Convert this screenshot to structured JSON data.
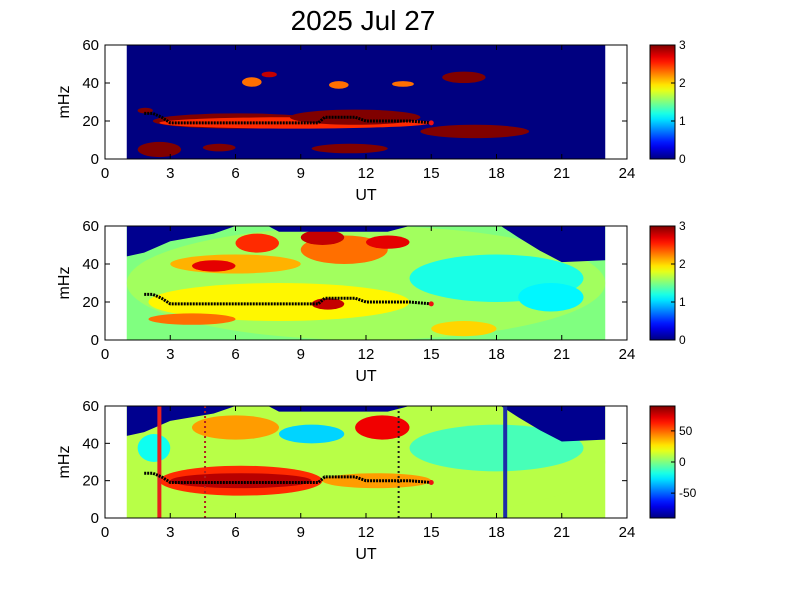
{
  "figure": {
    "title": "2025 Jul 27"
  },
  "chart_data": [
    {
      "type": "heatmap",
      "panel": "top",
      "xlabel": "UT",
      "ylabel": "mHz",
      "xlim": [
        0,
        24
      ],
      "ylim": [
        0,
        60
      ],
      "xticks": [
        0,
        3,
        6,
        9,
        12,
        15,
        18,
        21,
        24
      ],
      "yticks": [
        0,
        20,
        40,
        60
      ],
      "data_extent_ut": [
        1,
        23
      ],
      "colorbar": {
        "range": [
          0,
          3
        ],
        "ticks": [
          0,
          1,
          2,
          3
        ]
      },
      "background_value": 0,
      "blobs": [
        {
          "ut": [
            1.5,
            2.2
          ],
          "mhz": [
            24,
            27
          ],
          "v": 3
        },
        {
          "ut": [
            2.2,
            10
          ],
          "mhz": [
            16,
            24
          ],
          "v": 3
        },
        {
          "ut": [
            2.5,
            15
          ],
          "mhz": [
            16,
            22
          ],
          "v": 2.5
        },
        {
          "ut": [
            8.5,
            14.5
          ],
          "mhz": [
            18,
            26
          ],
          "v": 3
        },
        {
          "ut": [
            14.5,
            19.5
          ],
          "mhz": [
            11,
            18
          ],
          "v": 3
        },
        {
          "ut": [
            15.5,
            17.5
          ],
          "mhz": [
            40,
            46
          ],
          "v": 3
        },
        {
          "ut": [
            1.5,
            3.5
          ],
          "mhz": [
            1,
            9
          ],
          "v": 3
        },
        {
          "ut": [
            4.5,
            6
          ],
          "mhz": [
            4,
            8
          ],
          "v": 3
        },
        {
          "ut": [
            9.5,
            13
          ],
          "mhz": [
            3,
            8
          ],
          "v": 3
        },
        {
          "ut": [
            6.3,
            7.2
          ],
          "mhz": [
            38,
            43
          ],
          "v": 2.3
        },
        {
          "ut": [
            7.2,
            7.9
          ],
          "mhz": [
            43,
            46
          ],
          "v": 2.8
        },
        {
          "ut": [
            10.3,
            11.2
          ],
          "mhz": [
            37,
            41
          ],
          "v": 2.3
        },
        {
          "ut": [
            13.2,
            14.2
          ],
          "mhz": [
            38,
            41
          ],
          "v": 2.3
        }
      ],
      "trace": [
        [
          1.8,
          24
        ],
        [
          2.2,
          24
        ],
        [
          2.6,
          22
        ],
        [
          3,
          19
        ],
        [
          6,
          19
        ],
        [
          9,
          19
        ],
        [
          9.8,
          19
        ],
        [
          10.1,
          22
        ],
        [
          11.5,
          22
        ],
        [
          12,
          20
        ],
        [
          14,
          20
        ],
        [
          15,
          19
        ]
      ]
    },
    {
      "type": "heatmap",
      "panel": "middle",
      "xlabel": "UT",
      "ylabel": "mHz",
      "xlim": [
        0,
        24
      ],
      "ylim": [
        0,
        60
      ],
      "xticks": [
        0,
        3,
        6,
        9,
        12,
        15,
        18,
        21,
        24
      ],
      "yticks": [
        0,
        20,
        40,
        60
      ],
      "data_extent_ut": [
        1,
        23
      ],
      "colorbar": {
        "range": [
          0,
          3
        ],
        "ticks": [
          0,
          1,
          2,
          3
        ]
      },
      "background_value": 1.5,
      "blobs": [
        {
          "ut": [
            1,
            23
          ],
          "mhz": [
            0,
            60
          ],
          "v": 1.6
        },
        {
          "ut": [
            2,
            14
          ],
          "mhz": [
            10,
            30
          ],
          "v": 1.9
        },
        {
          "ut": [
            3,
            9
          ],
          "mhz": [
            35,
            45
          ],
          "v": 2.1
        },
        {
          "ut": [
            9,
            13
          ],
          "mhz": [
            40,
            55
          ],
          "v": 2.3
        },
        {
          "ut": [
            6,
            8
          ],
          "mhz": [
            46,
            56
          ],
          "v": 2.5
        },
        {
          "ut": [
            4,
            6
          ],
          "mhz": [
            36,
            42
          ],
          "v": 2.7
        },
        {
          "ut": [
            9,
            11
          ],
          "mhz": [
            50,
            58
          ],
          "v": 2.8
        },
        {
          "ut": [
            12,
            14
          ],
          "mhz": [
            48,
            55
          ],
          "v": 2.7
        },
        {
          "ut": [
            9.5,
            11
          ],
          "mhz": [
            16,
            22
          ],
          "v": 2.8
        },
        {
          "ut": [
            14,
            22
          ],
          "mhz": [
            20,
            45
          ],
          "v": 1.2
        },
        {
          "ut": [
            19,
            22
          ],
          "mhz": [
            15,
            30
          ],
          "v": 1.1
        },
        {
          "ut": [
            2,
            6
          ],
          "mhz": [
            8,
            14
          ],
          "v": 2.3
        },
        {
          "ut": [
            15,
            18
          ],
          "mhz": [
            2,
            10
          ],
          "v": 2.0
        }
      ],
      "trace": [
        [
          1.8,
          24
        ],
        [
          2.2,
          24
        ],
        [
          2.6,
          22
        ],
        [
          3,
          19
        ],
        [
          6,
          19
        ],
        [
          9,
          19
        ],
        [
          9.8,
          19
        ],
        [
          10.1,
          22
        ],
        [
          11.5,
          22
        ],
        [
          12,
          20
        ],
        [
          14,
          20
        ],
        [
          15,
          19
        ]
      ]
    },
    {
      "type": "heatmap",
      "panel": "bottom",
      "xlabel": "UT",
      "ylabel": "mHz",
      "xlim": [
        0,
        24
      ],
      "ylim": [
        0,
        60
      ],
      "xticks": [
        0,
        3,
        6,
        9,
        12,
        15,
        18,
        21,
        24
      ],
      "yticks": [
        0,
        20,
        40,
        60
      ],
      "data_extent_ut": [
        1,
        23
      ],
      "colorbar": {
        "range": [
          -90,
          90
        ],
        "ticks": [
          -50,
          0,
          50
        ]
      },
      "background_value": 10,
      "blobs": [
        {
          "ut": [
            1,
            23
          ],
          "mhz": [
            0,
            60
          ],
          "v": 10
        },
        {
          "ut": [
            2.5,
            10
          ],
          "mhz": [
            12,
            28
          ],
          "v": 60
        },
        {
          "ut": [
            3,
            9.5
          ],
          "mhz": [
            16,
            24
          ],
          "v": 80
        },
        {
          "ut": [
            10,
            15
          ],
          "mhz": [
            16,
            24
          ],
          "v": 40
        },
        {
          "ut": [
            11.5,
            14
          ],
          "mhz": [
            42,
            55
          ],
          "v": 70
        },
        {
          "ut": [
            4,
            8
          ],
          "mhz": [
            42,
            55
          ],
          "v": 40
        },
        {
          "ut": [
            8,
            11
          ],
          "mhz": [
            40,
            50
          ],
          "v": -30
        },
        {
          "ut": [
            14,
            22
          ],
          "mhz": [
            25,
            50
          ],
          "v": -10
        },
        {
          "ut": [
            1.5,
            3
          ],
          "mhz": [
            30,
            45
          ],
          "v": -20
        }
      ],
      "vlines": [
        {
          "ut": 2.5,
          "color": "#e8201e",
          "style": "solid"
        },
        {
          "ut": 4.6,
          "color": "#b0201e",
          "style": "dotted"
        },
        {
          "ut": 13.5,
          "color": "#1b1b1b",
          "style": "dotted"
        },
        {
          "ut": 18.4,
          "color": "#1e2da8",
          "style": "solid"
        }
      ],
      "trace": [
        [
          1.8,
          24
        ],
        [
          2.2,
          24
        ],
        [
          2.6,
          22
        ],
        [
          3,
          19
        ],
        [
          6,
          19
        ],
        [
          9,
          19
        ],
        [
          9.8,
          19
        ],
        [
          10.1,
          22
        ],
        [
          11.5,
          22
        ],
        [
          12,
          20
        ],
        [
          14,
          20
        ],
        [
          15,
          19
        ]
      ]
    }
  ]
}
